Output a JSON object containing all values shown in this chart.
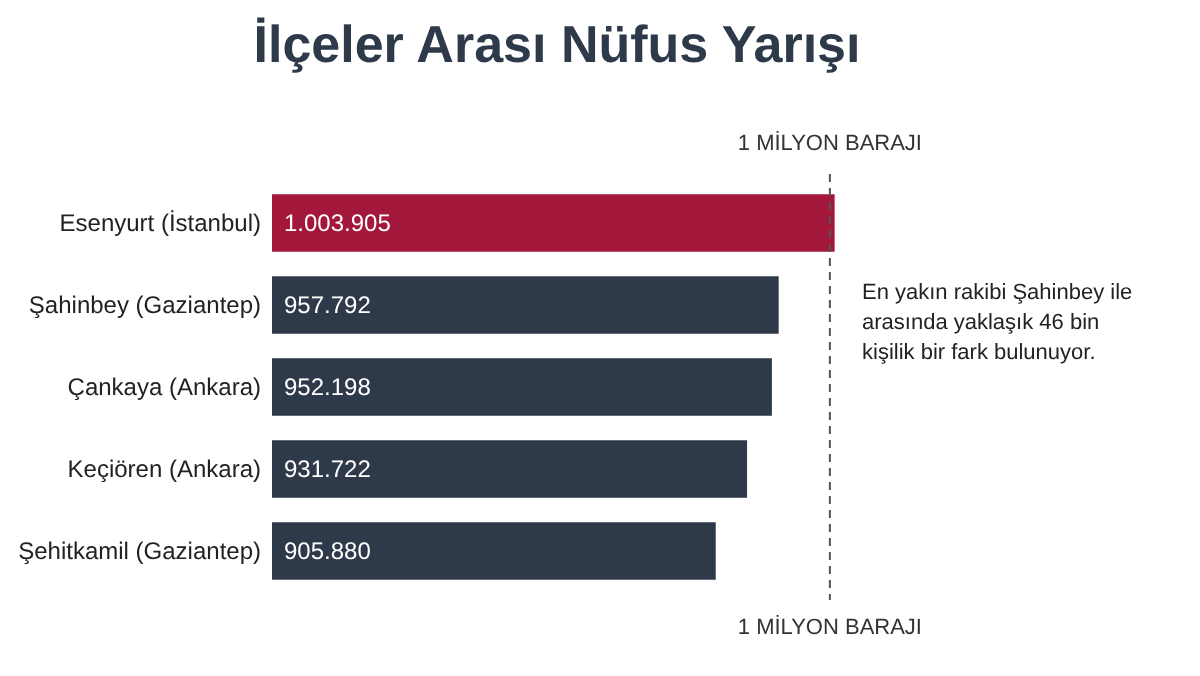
{
  "chart_data": {
    "type": "bar",
    "orientation": "horizontal",
    "title": "İlçeler Arası Nüfus Yarışı",
    "categories": [
      "Esenyurt (İstanbul)",
      "Şahinbey (Gaziantep)",
      "Çankaya (Ankara)",
      "Keçiören (Ankara)",
      "Şehitkamil (Gaziantep)"
    ],
    "values": [
      1003905,
      957792,
      952198,
      931722,
      905880
    ],
    "value_labels": [
      "1.003.905",
      "957.792",
      "952.198",
      "931.722",
      "905.880"
    ],
    "colors": [
      "#a3173a",
      "#2e3a4a",
      "#2e3a4a",
      "#2e3a4a",
      "#2e3a4a"
    ],
    "xlim": [
      540000,
      1010000
    ],
    "tick_labels": "y",
    "grid": false,
    "ref_lines": [
      {
        "axis": "x",
        "value": 1000000,
        "label": "1 MİLYON BARAJI",
        "color": "#555555",
        "line_style": "dashed"
      }
    ],
    "annotations": [
      "En yakın rakibi Şahinbey ile arasında yaklaşık 46 bin kişilik bir fark bulunuyor."
    ]
  }
}
